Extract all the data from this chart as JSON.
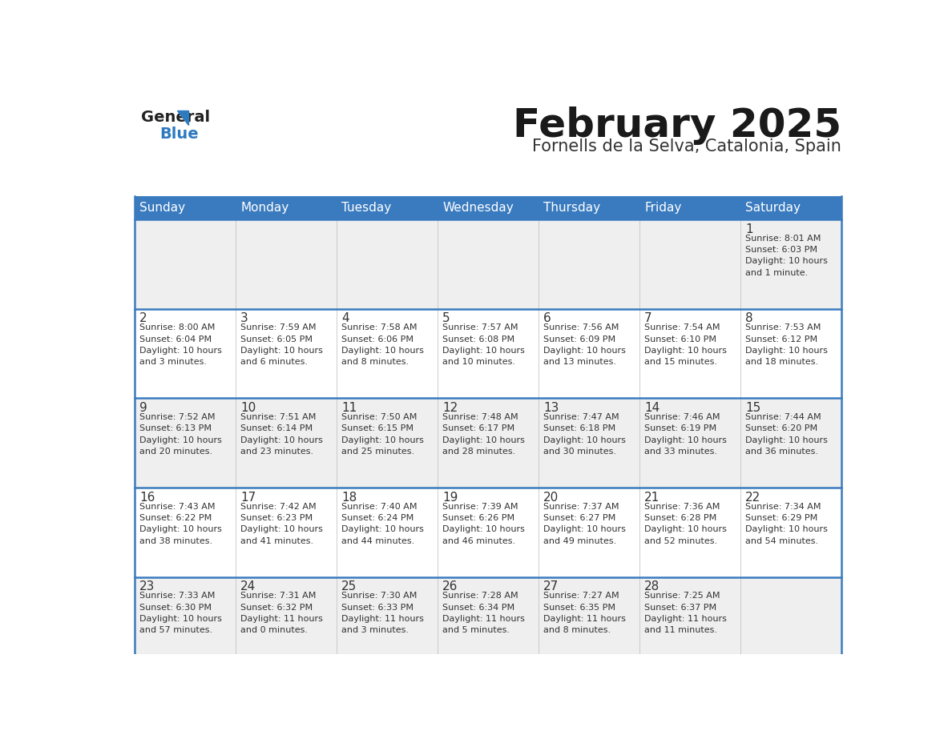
{
  "title": "February 2025",
  "subtitle": "Fornells de la Selva, Catalonia, Spain",
  "header_bg": "#3A7BBF",
  "header_text_color": "#FFFFFF",
  "cell_bg_odd": "#EFEFEF",
  "cell_bg_even": "#FFFFFF",
  "divider_color": "#3A7BBF",
  "text_color": "#333333",
  "logo_general_color": "#222222",
  "logo_blue_color": "#2E7ABF",
  "logo_triangle_color": "#2E7ABF",
  "days_of_week": [
    "Sunday",
    "Monday",
    "Tuesday",
    "Wednesday",
    "Thursday",
    "Friday",
    "Saturday"
  ],
  "calendar": [
    [
      {
        "day": "",
        "info": ""
      },
      {
        "day": "",
        "info": ""
      },
      {
        "day": "",
        "info": ""
      },
      {
        "day": "",
        "info": ""
      },
      {
        "day": "",
        "info": ""
      },
      {
        "day": "",
        "info": ""
      },
      {
        "day": "1",
        "info": "Sunrise: 8:01 AM\nSunset: 6:03 PM\nDaylight: 10 hours\nand 1 minute."
      }
    ],
    [
      {
        "day": "2",
        "info": "Sunrise: 8:00 AM\nSunset: 6:04 PM\nDaylight: 10 hours\nand 3 minutes."
      },
      {
        "day": "3",
        "info": "Sunrise: 7:59 AM\nSunset: 6:05 PM\nDaylight: 10 hours\nand 6 minutes."
      },
      {
        "day": "4",
        "info": "Sunrise: 7:58 AM\nSunset: 6:06 PM\nDaylight: 10 hours\nand 8 minutes."
      },
      {
        "day": "5",
        "info": "Sunrise: 7:57 AM\nSunset: 6:08 PM\nDaylight: 10 hours\nand 10 minutes."
      },
      {
        "day": "6",
        "info": "Sunrise: 7:56 AM\nSunset: 6:09 PM\nDaylight: 10 hours\nand 13 minutes."
      },
      {
        "day": "7",
        "info": "Sunrise: 7:54 AM\nSunset: 6:10 PM\nDaylight: 10 hours\nand 15 minutes."
      },
      {
        "day": "8",
        "info": "Sunrise: 7:53 AM\nSunset: 6:12 PM\nDaylight: 10 hours\nand 18 minutes."
      }
    ],
    [
      {
        "day": "9",
        "info": "Sunrise: 7:52 AM\nSunset: 6:13 PM\nDaylight: 10 hours\nand 20 minutes."
      },
      {
        "day": "10",
        "info": "Sunrise: 7:51 AM\nSunset: 6:14 PM\nDaylight: 10 hours\nand 23 minutes."
      },
      {
        "day": "11",
        "info": "Sunrise: 7:50 AM\nSunset: 6:15 PM\nDaylight: 10 hours\nand 25 minutes."
      },
      {
        "day": "12",
        "info": "Sunrise: 7:48 AM\nSunset: 6:17 PM\nDaylight: 10 hours\nand 28 minutes."
      },
      {
        "day": "13",
        "info": "Sunrise: 7:47 AM\nSunset: 6:18 PM\nDaylight: 10 hours\nand 30 minutes."
      },
      {
        "day": "14",
        "info": "Sunrise: 7:46 AM\nSunset: 6:19 PM\nDaylight: 10 hours\nand 33 minutes."
      },
      {
        "day": "15",
        "info": "Sunrise: 7:44 AM\nSunset: 6:20 PM\nDaylight: 10 hours\nand 36 minutes."
      }
    ],
    [
      {
        "day": "16",
        "info": "Sunrise: 7:43 AM\nSunset: 6:22 PM\nDaylight: 10 hours\nand 38 minutes."
      },
      {
        "day": "17",
        "info": "Sunrise: 7:42 AM\nSunset: 6:23 PM\nDaylight: 10 hours\nand 41 minutes."
      },
      {
        "day": "18",
        "info": "Sunrise: 7:40 AM\nSunset: 6:24 PM\nDaylight: 10 hours\nand 44 minutes."
      },
      {
        "day": "19",
        "info": "Sunrise: 7:39 AM\nSunset: 6:26 PM\nDaylight: 10 hours\nand 46 minutes."
      },
      {
        "day": "20",
        "info": "Sunrise: 7:37 AM\nSunset: 6:27 PM\nDaylight: 10 hours\nand 49 minutes."
      },
      {
        "day": "21",
        "info": "Sunrise: 7:36 AM\nSunset: 6:28 PM\nDaylight: 10 hours\nand 52 minutes."
      },
      {
        "day": "22",
        "info": "Sunrise: 7:34 AM\nSunset: 6:29 PM\nDaylight: 10 hours\nand 54 minutes."
      }
    ],
    [
      {
        "day": "23",
        "info": "Sunrise: 7:33 AM\nSunset: 6:30 PM\nDaylight: 10 hours\nand 57 minutes."
      },
      {
        "day": "24",
        "info": "Sunrise: 7:31 AM\nSunset: 6:32 PM\nDaylight: 11 hours\nand 0 minutes."
      },
      {
        "day": "25",
        "info": "Sunrise: 7:30 AM\nSunset: 6:33 PM\nDaylight: 11 hours\nand 3 minutes."
      },
      {
        "day": "26",
        "info": "Sunrise: 7:28 AM\nSunset: 6:34 PM\nDaylight: 11 hours\nand 5 minutes."
      },
      {
        "day": "27",
        "info": "Sunrise: 7:27 AM\nSunset: 6:35 PM\nDaylight: 11 hours\nand 8 minutes."
      },
      {
        "day": "28",
        "info": "Sunrise: 7:25 AM\nSunset: 6:37 PM\nDaylight: 11 hours\nand 11 minutes."
      },
      {
        "day": "",
        "info": ""
      }
    ]
  ]
}
